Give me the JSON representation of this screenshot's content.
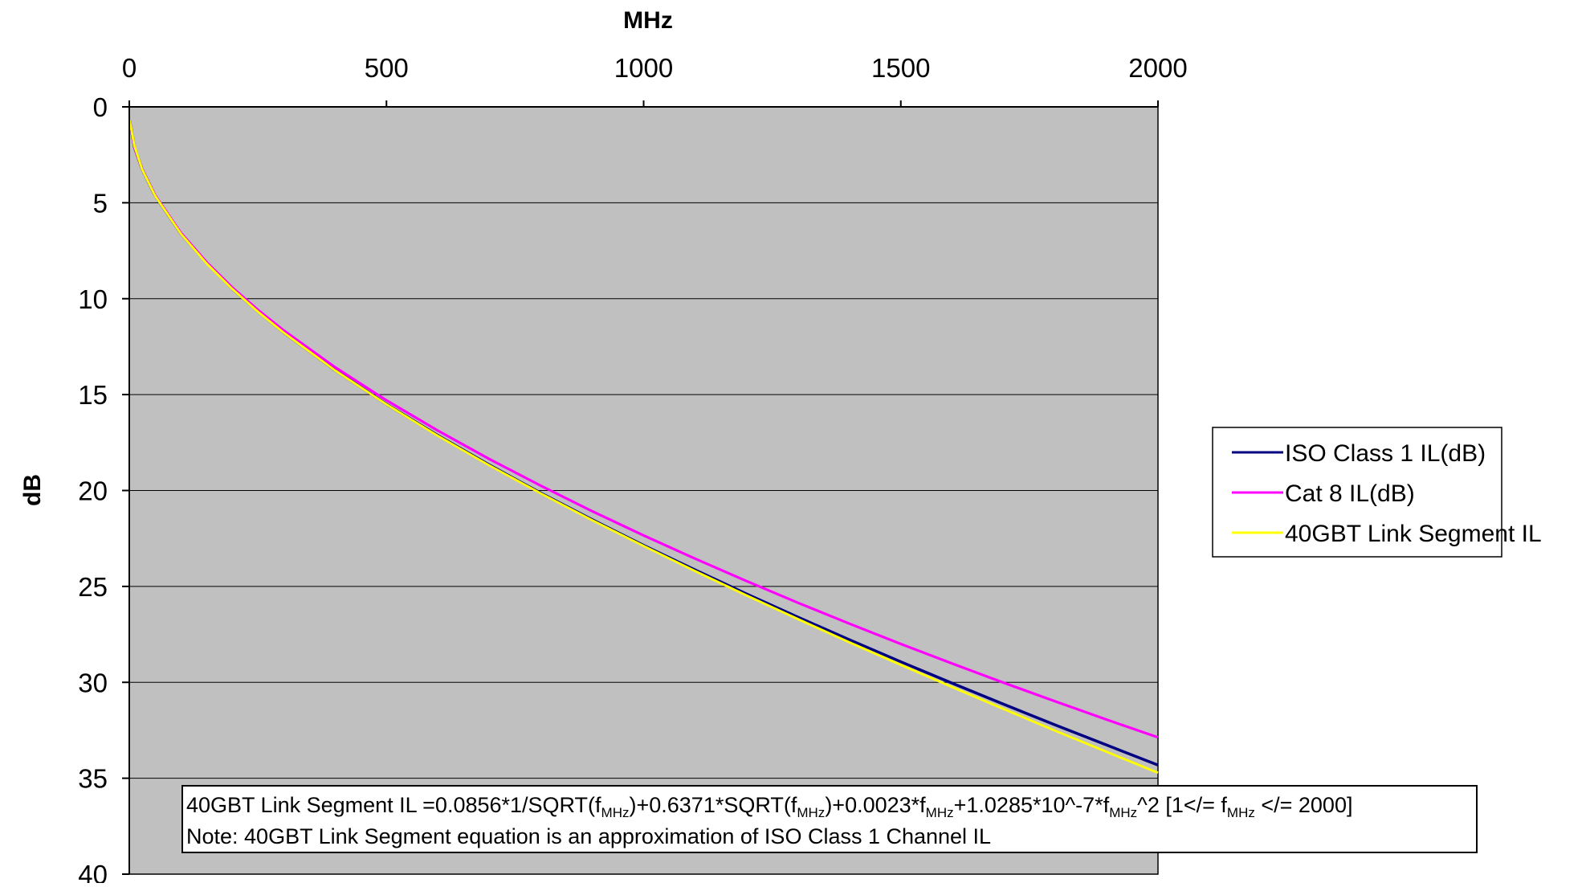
{
  "chart_data": {
    "type": "line",
    "xlabel": "MHz",
    "ylabel": "dB",
    "xlim": [
      0,
      2000
    ],
    "ylim": [
      0,
      40
    ],
    "y_axis_inverted": true,
    "x_axis_position": "top",
    "x_ticks": [
      0,
      500,
      1000,
      1500,
      2000
    ],
    "y_ticks": [
      0,
      5,
      10,
      15,
      20,
      25,
      30,
      35,
      40
    ],
    "grid": "horizontal",
    "plot_background": "#c0c0c0",
    "legend_position": "right",
    "series": [
      {
        "name": "ISO Class 1 IL(dB)",
        "color": "#000080",
        "x": [
          1,
          10,
          25,
          50,
          100,
          150,
          200,
          250,
          300,
          400,
          500,
          600,
          700,
          800,
          900,
          1000,
          1100,
          1200,
          1300,
          1400,
          1500,
          1600,
          1700,
          1800,
          1900,
          2000
        ],
        "y": [
          0.73,
          2.11,
          3.25,
          4.62,
          6.6,
          8.14,
          9.48,
          10.67,
          11.76,
          13.73,
          15.5,
          17.13,
          18.67,
          20.13,
          21.52,
          22.86,
          24.14,
          25.39,
          26.6,
          27.78,
          28.93,
          30.05,
          31.14,
          32.22,
          33.27,
          34.31
        ]
      },
      {
        "name": "Cat 8 IL(dB)",
        "color": "#ff00ff",
        "x": [
          1,
          10,
          25,
          50,
          100,
          150,
          200,
          250,
          300,
          400,
          500,
          600,
          700,
          800,
          900,
          1000,
          1100,
          1200,
          1300,
          1400,
          1500,
          1600,
          1700,
          1800,
          1900,
          2000
        ],
        "y": [
          0.73,
          2.11,
          3.24,
          4.6,
          6.56,
          8.09,
          9.41,
          10.58,
          11.65,
          13.57,
          15.3,
          16.88,
          18.36,
          19.75,
          21.08,
          22.34,
          23.55,
          24.72,
          25.85,
          26.94,
          28.0,
          29.02,
          30.02,
          30.99,
          31.94,
          32.87
        ]
      },
      {
        "name": "40GBT Link Segment IL",
        "color": "#ffff00",
        "x": [
          1,
          10,
          25,
          50,
          100,
          150,
          200,
          250,
          300,
          400,
          500,
          600,
          700,
          800,
          900,
          1000,
          1100,
          1200,
          1300,
          1400,
          1500,
          1600,
          1700,
          1800,
          1900,
          2000
        ],
        "y": [
          0.72,
          2.04,
          3.26,
          4.63,
          6.61,
          8.16,
          9.49,
          10.68,
          11.77,
          13.74,
          15.51,
          17.15,
          18.69,
          20.15,
          21.55,
          22.89,
          24.2,
          25.47,
          26.7,
          27.91,
          29.09,
          30.25,
          31.39,
          32.52,
          33.62,
          34.72
        ]
      }
    ],
    "annotation_line1": {
      "a": "40GBT Link Segment IL =0.0856*1/SQRT(f",
      "b": ")+0.6371*SQRT(f",
      "c": ")+0.0023*f",
      "d": "+1.0285*10^-7*f",
      "e": "^2    [1</= f",
      "f": " </= 2000]",
      "sub": "MHz"
    },
    "annotation_line2": "Note: 40GBT Link Segment equation is an approximation of ISO Class 1 Channel IL"
  }
}
